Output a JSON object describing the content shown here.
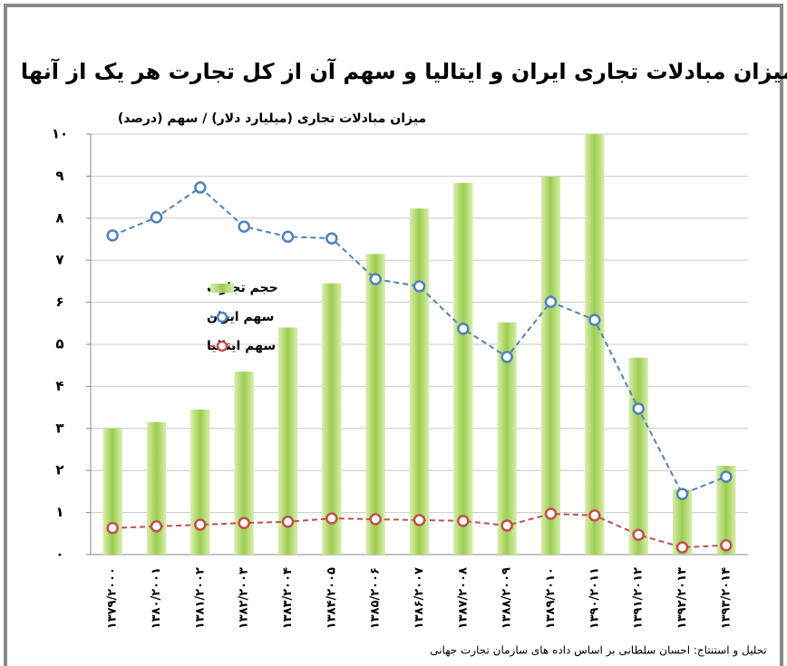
{
  "chart_data": {
    "type": "bar",
    "title": "میزان مبادلات تجاری ایران و ایتالیا و سهم آن از کل تجارت هر یک از آنها",
    "y_label": "میزان مبادلات تجاری (میلیارد دلار) / سهم (درصد)",
    "source": "تحلیل و استنتاج: احسان سلطانی بر اساس داده های سازمان تجارت جهانی",
    "categories": [
      "۱۳۷۹/۲۰۰۰",
      "۱۳۸۰/۲۰۰۱",
      "۱۳۸۱/۲۰۰۲",
      "۱۳۸۲/۲۰۰۳",
      "۱۳۸۳/۲۰۰۴",
      "۱۳۸۴/۲۰۰۵",
      "۱۳۸۵/۲۰۰۶",
      "۱۳۸۶/۲۰۰۷",
      "۱۳۸۷/۲۰۰۸",
      "۱۳۸۸/۲۰۰۹",
      "۱۳۸۹/۲۰۱۰",
      "۱۳۹۰/۲۰۱۱",
      "۱۳۹۱/۲۰۱۲",
      "۱۳۹۲/۲۰۱۳",
      "۱۳۹۳/۲۰۱۴"
    ],
    "series": [
      {
        "name": "حجم تجارت",
        "type": "bar",
        "color": "#9ccd52",
        "values": [
          3.0,
          3.15,
          3.45,
          4.35,
          5.4,
          6.45,
          7.15,
          8.23,
          8.84,
          5.52,
          8.99,
          10.0,
          4.68,
          1.55,
          2.11
        ]
      },
      {
        "name": "سهم ایران",
        "type": "line",
        "color": "#4f81bd",
        "values": [
          7.59,
          8.02,
          8.73,
          7.8,
          7.56,
          7.52,
          6.55,
          6.38,
          5.37,
          4.7,
          6.01,
          5.58,
          3.47,
          1.44,
          1.85
        ]
      },
      {
        "name": "سهم ایتالیا",
        "type": "line",
        "color": "#c0504d",
        "values": [
          0.63,
          0.67,
          0.71,
          0.75,
          0.78,
          0.86,
          0.84,
          0.82,
          0.8,
          0.69,
          0.97,
          0.93,
          0.47,
          0.17,
          0.22
        ]
      }
    ],
    "ylim": [
      0,
      10
    ],
    "yticks": [
      {
        "value": 0,
        "label": "۰"
      },
      {
        "value": 1,
        "label": "۱"
      },
      {
        "value": 2,
        "label": "۲"
      },
      {
        "value": 3,
        "label": "۳"
      },
      {
        "value": 4,
        "label": "۴"
      },
      {
        "value": 5,
        "label": "۵"
      },
      {
        "value": 6,
        "label": "۶"
      },
      {
        "value": 7,
        "label": "۷"
      },
      {
        "value": 8,
        "label": "۸"
      },
      {
        "value": 9,
        "label": "۹"
      },
      {
        "value": 10,
        "label": "۱۰"
      }
    ],
    "grid": true,
    "legend": "left"
  }
}
